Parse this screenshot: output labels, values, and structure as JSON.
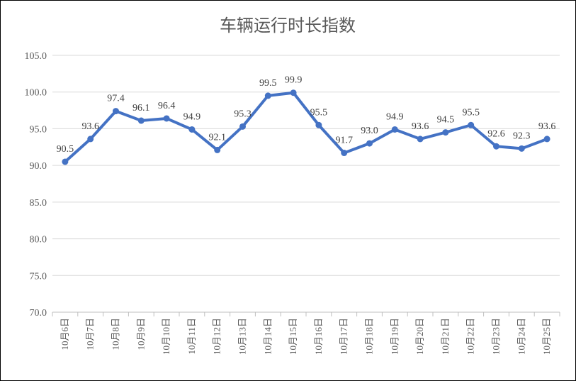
{
  "chart_data": {
    "type": "line",
    "title": "车辆运行时长指数",
    "xlabel": "",
    "ylabel": "",
    "ylim": [
      70,
      105
    ],
    "yticks": [
      "70.0",
      "75.0",
      "80.0",
      "85.0",
      "90.0",
      "95.0",
      "100.0",
      "105.0"
    ],
    "grid": true,
    "legend": "none",
    "categories": [
      "10月6日",
      "10月7日",
      "10月8日",
      "10月9日",
      "10月10日",
      "10月11日",
      "10月12日",
      "10月13日",
      "10月14日",
      "10月15日",
      "10月16日",
      "10月17日",
      "10月18日",
      "10月19日",
      "10月20日",
      "10月21日",
      "10月22日",
      "10月23日",
      "10月24日",
      "10月25日"
    ],
    "series": [
      {
        "values": [
          90.5,
          93.6,
          97.4,
          96.1,
          96.4,
          94.9,
          92.1,
          95.3,
          99.5,
          99.9,
          95.5,
          91.7,
          93.0,
          94.9,
          93.6,
          94.5,
          95.5,
          92.6,
          92.3,
          93.6
        ],
        "labels": [
          "90.5",
          "93.6",
          "97.4",
          "96.1",
          "96.4",
          "94.9",
          "92.1",
          "95.3",
          "99.5",
          "99.9",
          "95.5",
          "91.7",
          "93.0",
          "94.9",
          "93.6",
          "94.5",
          "95.5",
          "92.6",
          "92.3",
          "93.6"
        ],
        "color": "#4472C4"
      }
    ],
    "colors": {
      "grid": "#D9D9D9",
      "axis": "#BFBFBF",
      "text": "#595959"
    }
  }
}
